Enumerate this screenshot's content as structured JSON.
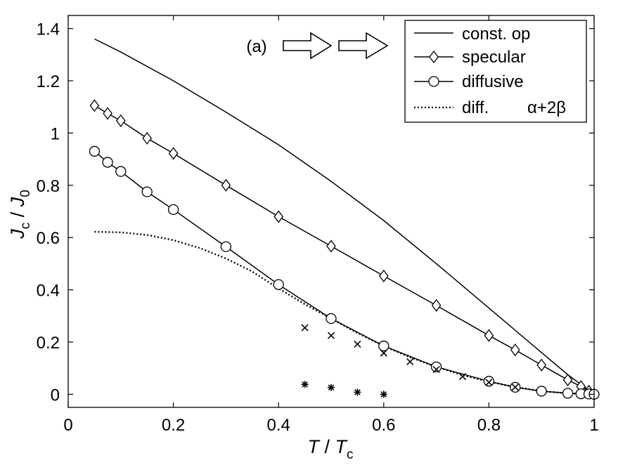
{
  "chart_data": {
    "type": "line",
    "xlabel_main": "T",
    "xlabel_sep": " / ",
    "xlabel_sub_main": "T",
    "xlabel_sub": "c",
    "ylabel_main": "J",
    "ylabel_sub": "c",
    "ylabel_sep": " / ",
    "ylabel_main2": "J",
    "ylabel_sub2": "0",
    "xlim": [
      0,
      1
    ],
    "ylim": [
      -0.05,
      1.45
    ],
    "xticks": [
      0,
      0.2,
      0.4,
      0.6,
      0.8,
      1
    ],
    "xtick_labels": [
      "0",
      "0.2",
      "0.4",
      "0.6",
      "0.8",
      "1"
    ],
    "yticks": [
      0,
      0.2,
      0.4,
      0.6,
      0.8,
      1,
      1.2,
      1.4
    ],
    "ytick_labels": [
      "0",
      "0.2",
      "0.4",
      "0.6",
      "0.8",
      "1",
      "1.2",
      "1.4"
    ],
    "grid": false,
    "annotation": "(a)",
    "legend_position": "top-right",
    "series": [
      {
        "name": "const. op",
        "style": "solid",
        "marker": "none",
        "x": [
          0.05,
          0.1,
          0.2,
          0.3,
          0.4,
          0.5,
          0.6,
          0.7,
          0.8,
          0.9,
          0.95,
          0.98,
          1.0
        ],
        "y": [
          1.36,
          1.31,
          1.2,
          1.08,
          0.955,
          0.815,
          0.665,
          0.5,
          0.33,
          0.16,
          0.075,
          0.03,
          0.0
        ]
      },
      {
        "name": "specular",
        "style": "solid",
        "marker": "diamond",
        "x": [
          0.05,
          0.075,
          0.1,
          0.15,
          0.2,
          0.3,
          0.4,
          0.5,
          0.6,
          0.7,
          0.8,
          0.85,
          0.9,
          0.95,
          0.975,
          0.99,
          1.0
        ],
        "y": [
          1.105,
          1.075,
          1.047,
          0.98,
          0.922,
          0.8,
          0.68,
          0.567,
          0.453,
          0.34,
          0.225,
          0.17,
          0.112,
          0.055,
          0.03,
          0.012,
          0.0
        ]
      },
      {
        "name": "diffusive",
        "style": "solid",
        "marker": "circle",
        "x": [
          0.05,
          0.075,
          0.1,
          0.15,
          0.2,
          0.3,
          0.4,
          0.5,
          0.6,
          0.7,
          0.8,
          0.85,
          0.9,
          0.95,
          0.975,
          0.99,
          1.0
        ],
        "y": [
          0.93,
          0.888,
          0.853,
          0.775,
          0.707,
          0.565,
          0.42,
          0.29,
          0.185,
          0.105,
          0.05,
          0.027,
          0.012,
          0.004,
          0.002,
          0.001,
          0.0
        ]
      },
      {
        "name": "diff.",
        "legend_extra": "α+2β",
        "style": "dotted",
        "marker": "none",
        "x": [
          0.05,
          0.1,
          0.15,
          0.2,
          0.25,
          0.3,
          0.35,
          0.4,
          0.45,
          0.5,
          0.55,
          0.6,
          0.65,
          0.7,
          0.75,
          0.8,
          0.85,
          0.9,
          0.95,
          1.0
        ],
        "y": [
          0.622,
          0.62,
          0.61,
          0.59,
          0.56,
          0.52,
          0.47,
          0.405,
          0.345,
          0.29,
          0.235,
          0.185,
          0.142,
          0.105,
          0.073,
          0.048,
          0.028,
          0.012,
          0.004,
          0.0
        ]
      }
    ],
    "scatter_series": [
      {
        "name": "cross markers",
        "marker": "x",
        "x": [
          0.45,
          0.5,
          0.55,
          0.6,
          0.65,
          0.7,
          0.75,
          0.8,
          0.85
        ],
        "y": [
          0.255,
          0.225,
          0.192,
          0.158,
          0.125,
          0.095,
          0.068,
          0.046,
          0.027
        ]
      },
      {
        "name": "star markers",
        "marker": "star",
        "x": [
          0.45,
          0.5,
          0.55,
          0.6
        ],
        "y": [
          0.038,
          0.026,
          0.008,
          0.0
        ]
      }
    ],
    "arrows_count": 2
  }
}
